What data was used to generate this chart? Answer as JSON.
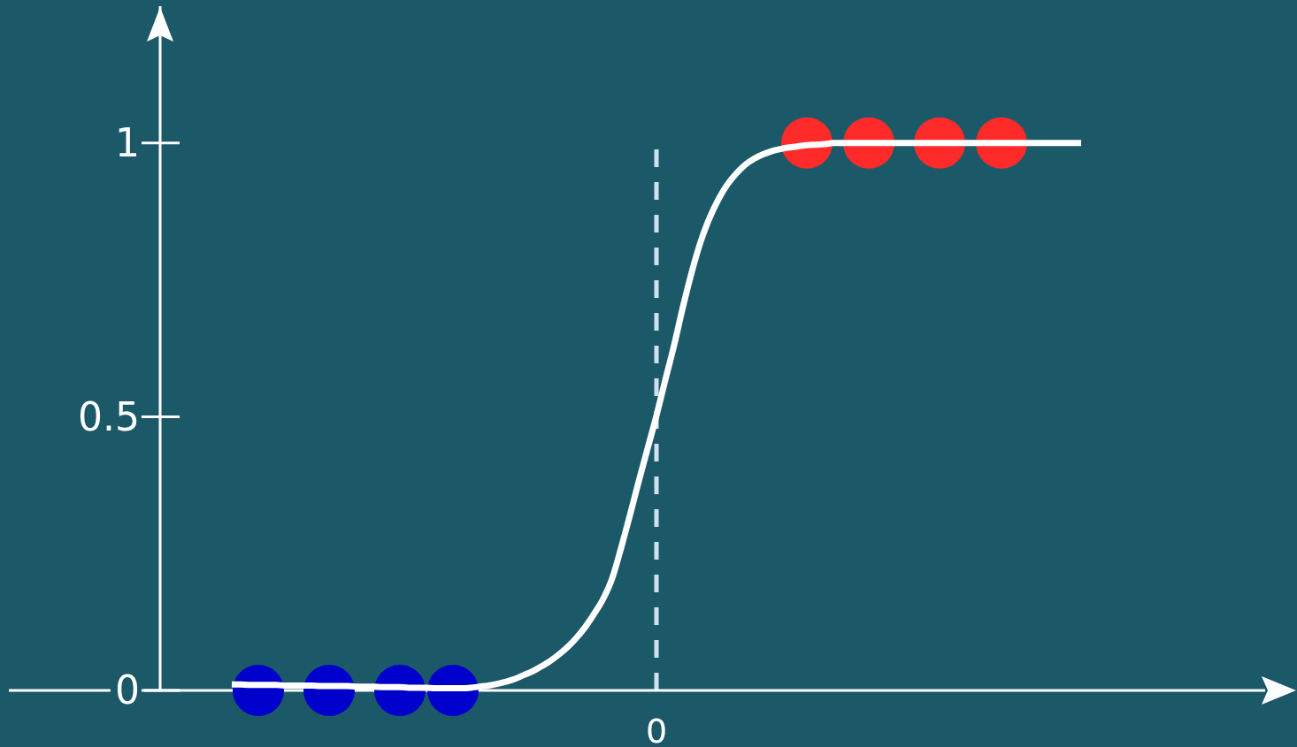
{
  "chart_data": {
    "type": "line",
    "categories": [
      null,
      null,
      null,
      null,
      null,
      null,
      null,
      null,
      null,
      null,
      null,
      null,
      null,
      null,
      null,
      null,
      null,
      null,
      null,
      null,
      null,
      null,
      null,
      null,
      null,
      null,
      null,
      null,
      null,
      null,
      null,
      null,
      null,
      null,
      null,
      null,
      null,
      null,
      null,
      null,
      null,
      null,
      null,
      null,
      null,
      null,
      null,
      null,
      "0",
      null,
      null,
      null,
      null,
      null,
      null,
      null,
      null,
      null,
      null,
      null,
      null,
      null,
      null,
      null,
      null,
      null,
      null,
      null,
      null,
      null,
      null,
      null,
      null,
      null,
      null,
      null,
      null,
      null,
      null,
      null,
      null,
      null,
      null,
      null,
      null,
      null,
      null,
      null,
      null,
      null,
      null,
      null,
      null,
      null,
      null,
      null,
      null
    ],
    "series": [
      {
        "color": "#ffffff",
        "marker": "none",
        "values": [
          0.011,
          0.011,
          0.01,
          0.01,
          0.01,
          0.01,
          0.009,
          0.009,
          0.009,
          0.009,
          0.008,
          0.008,
          0.008,
          0.008,
          0.007,
          0.007,
          0.007,
          0.006,
          0.006,
          0.006,
          0.005,
          0.005,
          0.005,
          0.004,
          0.004,
          0.004,
          0.004,
          0.005,
          0.007,
          0.009,
          0.012,
          0.016,
          0.021,
          0.028,
          0.035,
          0.044,
          0.054,
          0.066,
          0.08,
          0.097,
          0.117,
          0.141,
          0.168,
          0.205,
          0.26,
          0.32,
          0.382,
          0.442,
          0.502,
          0.567,
          0.631,
          0.701,
          0.765,
          0.82,
          0.863,
          0.897,
          0.924,
          0.944,
          0.96,
          0.971,
          0.979,
          0.985,
          0.989,
          0.992,
          0.994,
          0.996,
          0.997,
          0.998,
          1,
          1,
          1,
          1,
          1,
          1,
          1,
          1,
          1,
          1,
          1,
          1,
          1,
          1,
          1,
          1,
          1,
          1,
          1,
          1,
          1,
          1,
          1,
          1,
          1,
          1,
          1,
          1,
          1
        ]
      },
      {
        "type": "scatter",
        "color": "#0000cc",
        "marker": "circle",
        "values": [
          null,
          null,
          null,
          0,
          null,
          null,
          null,
          null,
          null,
          null,
          null,
          0,
          null,
          null,
          null,
          null,
          null,
          null,
          null,
          0,
          null,
          null,
          null,
          null,
          null,
          0,
          null,
          null,
          null,
          null,
          null,
          null,
          null,
          null,
          null,
          null,
          null,
          null,
          null,
          null,
          null,
          null,
          null,
          null,
          null,
          null,
          null,
          null,
          null,
          null,
          null,
          null,
          null,
          null,
          null,
          null,
          null,
          null,
          null,
          null,
          null,
          null,
          null,
          null,
          null,
          null,
          null,
          null,
          null,
          null,
          null,
          null,
          null,
          null,
          null,
          null,
          null,
          null,
          null,
          null,
          null,
          null,
          null,
          null,
          null,
          null,
          null,
          null,
          null,
          null,
          null,
          null,
          null,
          null,
          null,
          null,
          null
        ]
      },
      {
        "type": "scatter",
        "color": "#ff2a2a",
        "marker": "circle",
        "values": [
          null,
          null,
          null,
          null,
          null,
          null,
          null,
          null,
          null,
          null,
          null,
          null,
          null,
          null,
          null,
          null,
          null,
          null,
          null,
          null,
          null,
          null,
          null,
          null,
          null,
          null,
          null,
          null,
          null,
          null,
          null,
          null,
          null,
          null,
          null,
          null,
          null,
          null,
          null,
          null,
          null,
          null,
          null,
          null,
          null,
          null,
          null,
          null,
          null,
          null,
          null,
          null,
          null,
          null,
          null,
          null,
          null,
          null,
          null,
          null,
          null,
          null,
          null,
          null,
          null,
          1,
          null,
          null,
          null,
          null,
          null,
          null,
          1,
          null,
          null,
          null,
          null,
          null,
          null,
          null,
          1,
          null,
          null,
          null,
          null,
          null,
          null,
          1,
          null,
          null,
          null,
          null,
          null,
          null,
          null,
          null,
          null
        ]
      }
    ],
    "ylim": [
      0,
      1.25
    ],
    "yticks": [
      0,
      0.5,
      1
    ],
    "ref_lines": [
      {
        "axis": "x",
        "value": "0",
        "color": "#cfe2ee",
        "line_style": "dashed"
      }
    ]
  }
}
